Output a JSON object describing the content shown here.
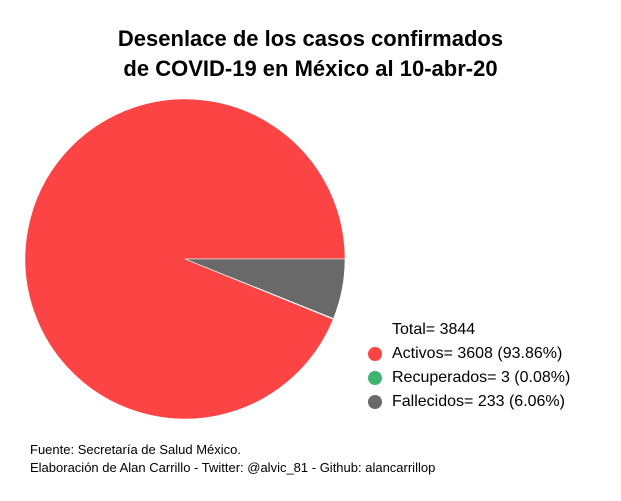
{
  "chart_data": {
    "type": "pie",
    "title_lines": [
      "Desenlace de los casos confirmados",
      "de COVID-19 en México al 10-abr-20"
    ],
    "total_label": "Total= 3844",
    "slices": [
      {
        "label": "Activos",
        "value": 3608,
        "percent": 93.86,
        "color": "#fc4444",
        "legend_text": "Activos= 3608 (93.86%)"
      },
      {
        "label": "Recuperados",
        "value": 3,
        "percent": 0.08,
        "color": "#3cb371",
        "legend_text": "Recuperados= 3 (0.08%)"
      },
      {
        "label": "Fallecidos",
        "value": 233,
        "percent": 6.06,
        "color": "#696969",
        "legend_text": "Fallecidos= 233 (6.06%)"
      }
    ],
    "legend_position": "bottom-right"
  },
  "footer": {
    "line1": "Fuente: Secretaría de Salud México.",
    "line2": "Elaboración de Alan Carrillo - Twitter: @alvic_81 - Github: alancarrillop"
  }
}
